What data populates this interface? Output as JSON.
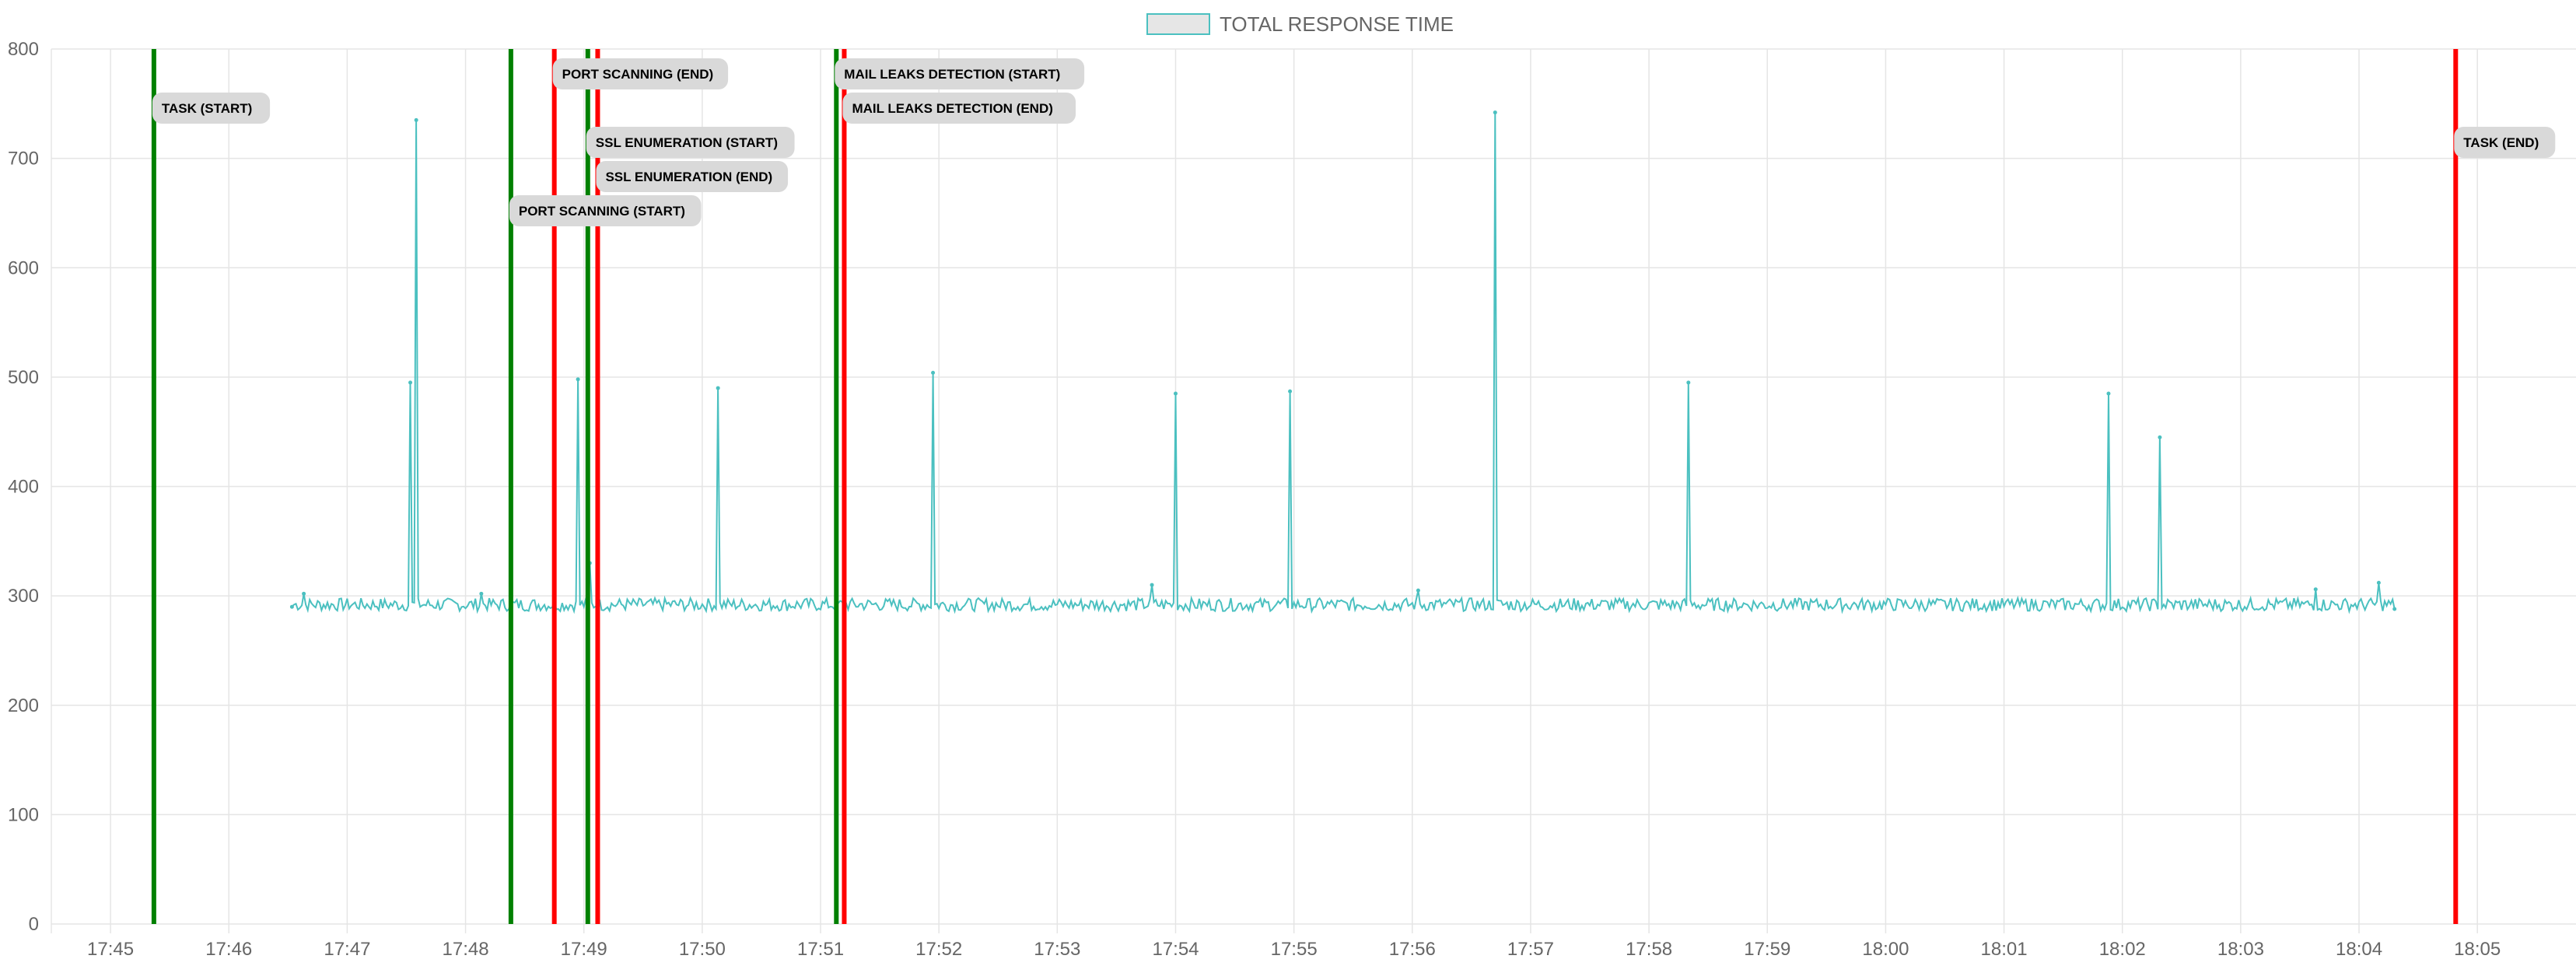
{
  "colors": {
    "series_line": "#4bc0c0",
    "series_fill": "#e6e6e6",
    "grid": "#e5e5e5",
    "start_marker": "#008000",
    "end_marker": "#ff0000",
    "annotation_bg": "#d9d9d9",
    "axis_text": "#666666"
  },
  "chart_data": {
    "type": "line",
    "title": "",
    "xlabel": "",
    "ylabel": "",
    "legend": {
      "position": "top-center",
      "entries": [
        "TOTAL RESPONSE TIME"
      ]
    },
    "grid": true,
    "ylim": [
      0,
      800
    ],
    "yticks": [
      0,
      100,
      200,
      300,
      400,
      500,
      600,
      700,
      800
    ],
    "xlim": [
      "17:44:30",
      "18:05:50"
    ],
    "xticks": [
      "17:45",
      "17:46",
      "17:47",
      "17:48",
      "17:49",
      "17:50",
      "17:51",
      "17:52",
      "17:53",
      "17:54",
      "17:55",
      "17:56",
      "17:57",
      "17:58",
      "17:59",
      "18:00",
      "18:01",
      "18:02",
      "18:03",
      "18:04",
      "18:05"
    ],
    "series": [
      {
        "name": "TOTAL RESPONSE TIME",
        "x_range": [
          "17:46:32",
          "18:04:18"
        ],
        "baseline": 292,
        "points": [
          [
            "17:46:32",
            290
          ],
          [
            "17:46:38",
            302
          ],
          [
            "17:47:32",
            495
          ],
          [
            "17:47:35",
            735
          ],
          [
            "17:48:08",
            302
          ],
          [
            "17:48:57",
            498
          ],
          [
            "17:49:03",
            330
          ],
          [
            "17:50:08",
            490
          ],
          [
            "17:51:57",
            504
          ],
          [
            "17:53:48",
            310
          ],
          [
            "17:54:00",
            485
          ],
          [
            "17:54:58",
            487
          ],
          [
            "17:56:03",
            305
          ],
          [
            "17:56:42",
            742
          ],
          [
            "17:58:20",
            495
          ],
          [
            "18:01:53",
            485
          ],
          [
            "18:02:19",
            445
          ],
          [
            "18:03:38",
            306
          ],
          [
            "18:04:10",
            312
          ],
          [
            "18:04:18",
            288
          ]
        ]
      }
    ],
    "annotations": [
      {
        "time": "17:45:22",
        "kind": "start",
        "label": "TASK (START)"
      },
      {
        "time": "17:48:23",
        "kind": "start",
        "label": "PORT SCANNING (START)"
      },
      {
        "time": "17:48:45",
        "kind": "end",
        "label": "PORT SCANNING (END)"
      },
      {
        "time": "17:49:02",
        "kind": "start",
        "label": "SSL ENUMERATION (START)"
      },
      {
        "time": "17:49:07",
        "kind": "end",
        "label": "SSL ENUMERATION (END)"
      },
      {
        "time": "17:51:08",
        "kind": "start",
        "label": "MAIL LEAKS DETECTION (START)"
      },
      {
        "time": "17:51:12",
        "kind": "end",
        "label": "MAIL LEAKS DETECTION (END)"
      },
      {
        "time": "18:04:49",
        "kind": "end",
        "label": "TASK (END)"
      }
    ]
  }
}
